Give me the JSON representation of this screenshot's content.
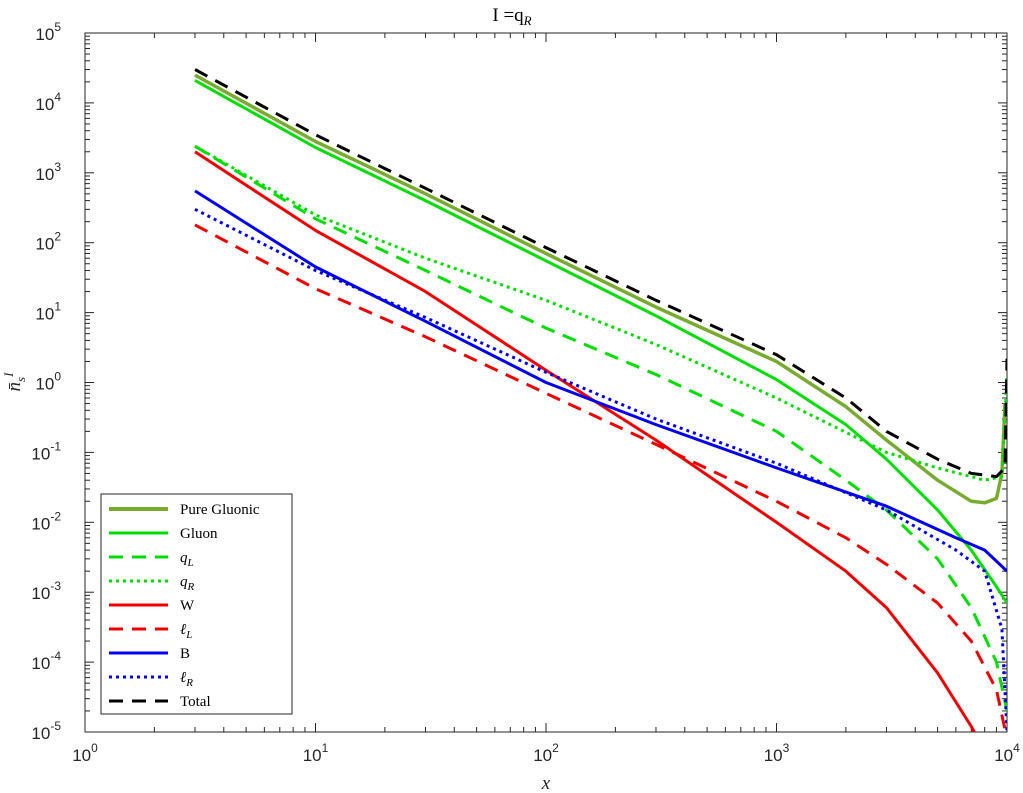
{
  "chart_data": {
    "type": "line",
    "title": "I =q",
    "title_sub": "R",
    "xlabel": "x",
    "ylabel": "n̄",
    "ylabel_sub": "s",
    "ylabel_sup": "I",
    "x_scale": "log",
    "y_scale": "log",
    "xlim": [
      1,
      10000
    ],
    "ylim": [
      1e-05,
      100000.0
    ],
    "x_ticks": [
      {
        "base": "10",
        "exp": "0"
      },
      {
        "base": "10",
        "exp": "1"
      },
      {
        "base": "10",
        "exp": "2"
      },
      {
        "base": "10",
        "exp": "3"
      },
      {
        "base": "10",
        "exp": "4"
      }
    ],
    "y_ticks": [
      {
        "base": "10",
        "exp": "-5"
      },
      {
        "base": "10",
        "exp": "-4"
      },
      {
        "base": "10",
        "exp": "-3"
      },
      {
        "base": "10",
        "exp": "-2"
      },
      {
        "base": "10",
        "exp": "-1"
      },
      {
        "base": "10",
        "exp": "0"
      },
      {
        "base": "10",
        "exp": "1"
      },
      {
        "base": "10",
        "exp": "2"
      },
      {
        "base": "10",
        "exp": "3"
      },
      {
        "base": "10",
        "exp": "4"
      },
      {
        "base": "10",
        "exp": "5"
      }
    ],
    "grid": false,
    "legend_position": "bottom-left",
    "series": [
      {
        "name": "Pure Gluonic",
        "color": "#77ac30",
        "dash": "solid",
        "points": [
          [
            3,
            25000
          ],
          [
            10,
            2800
          ],
          [
            30,
            500
          ],
          [
            100,
            70
          ],
          [
            300,
            12
          ],
          [
            1000,
            2
          ],
          [
            2000,
            0.45
          ],
          [
            3000,
            0.15
          ],
          [
            5000,
            0.04
          ],
          [
            7000,
            0.02
          ],
          [
            8000,
            0.019
          ],
          [
            9000,
            0.022
          ],
          [
            9500,
            0.05
          ],
          [
            9800,
            0.5
          ]
        ]
      },
      {
        "name": "Gluon",
        "color": "#00dd00",
        "dash": "solid",
        "points": [
          [
            3,
            21000
          ],
          [
            10,
            2300
          ],
          [
            30,
            400
          ],
          [
            100,
            55
          ],
          [
            300,
            9
          ],
          [
            1000,
            1.1
          ],
          [
            2000,
            0.25
          ],
          [
            3000,
            0.08
          ],
          [
            5000,
            0.015
          ],
          [
            7000,
            0.004
          ],
          [
            9000,
            0.0012
          ],
          [
            10000,
            0.0007
          ]
        ]
      },
      {
        "name": "q",
        "sub": "L",
        "color": "#00dd00",
        "dash": "dashed",
        "points": [
          [
            3,
            2400
          ],
          [
            10,
            220
          ],
          [
            30,
            40
          ],
          [
            100,
            6
          ],
          [
            300,
            1.3
          ],
          [
            1000,
            0.2
          ],
          [
            2000,
            0.04
          ],
          [
            3000,
            0.015
          ],
          [
            5000,
            0.003
          ],
          [
            7000,
            0.0006
          ],
          [
            9000,
            0.0001
          ],
          [
            10000,
            2e-05
          ]
        ]
      },
      {
        "name": "q",
        "sub": "R",
        "color": "#00dd00",
        "dash": "dotted",
        "points": [
          [
            3,
            2400
          ],
          [
            10,
            250
          ],
          [
            30,
            60
          ],
          [
            100,
            15
          ],
          [
            300,
            3.5
          ],
          [
            1000,
            0.6
          ],
          [
            3000,
            0.1
          ],
          [
            5000,
            0.06
          ],
          [
            8000,
            0.04
          ],
          [
            9500,
            0.045
          ],
          [
            10000,
            1.2
          ]
        ]
      },
      {
        "name": "W",
        "color": "#ee0000",
        "dash": "solid",
        "points": [
          [
            3,
            2000
          ],
          [
            10,
            150
          ],
          [
            30,
            20
          ],
          [
            100,
            1.5
          ],
          [
            300,
            0.15
          ],
          [
            1000,
            0.01
          ],
          [
            2000,
            0.002
          ],
          [
            3000,
            0.0006
          ],
          [
            5000,
            7e-05
          ],
          [
            7000,
            1.2e-05
          ],
          [
            7500,
            8e-06
          ]
        ]
      },
      {
        "name": "ℓ",
        "sub": "L",
        "color": "#ee0000",
        "dash": "dashed",
        "points": [
          [
            3,
            180
          ],
          [
            10,
            22
          ],
          [
            30,
            4.5
          ],
          [
            100,
            0.7
          ],
          [
            300,
            0.13
          ],
          [
            1000,
            0.02
          ],
          [
            2000,
            0.006
          ],
          [
            3000,
            0.0025
          ],
          [
            5000,
            0.0007
          ],
          [
            7000,
            0.0002
          ],
          [
            9000,
            4e-05
          ],
          [
            10000,
            8e-06
          ]
        ]
      },
      {
        "name": "B",
        "color": "#0000ee",
        "dash": "solid",
        "points": [
          [
            3,
            550
          ],
          [
            10,
            45
          ],
          [
            30,
            7.5
          ],
          [
            100,
            1
          ],
          [
            300,
            0.25
          ],
          [
            1000,
            0.06
          ],
          [
            3000,
            0.017
          ],
          [
            6000,
            0.006
          ],
          [
            8000,
            0.004
          ],
          [
            10000,
            0.002
          ]
        ]
      },
      {
        "name": "ℓ",
        "sub": "R",
        "color": "#0000ee",
        "dash": "dotted",
        "points": [
          [
            3,
            300
          ],
          [
            10,
            40
          ],
          [
            30,
            8.5
          ],
          [
            100,
            1.4
          ],
          [
            300,
            0.3
          ],
          [
            1000,
            0.07
          ],
          [
            3000,
            0.015
          ],
          [
            6000,
            0.004
          ],
          [
            8000,
            0.002
          ],
          [
            9500,
            0.0003
          ],
          [
            10000,
            1e-05
          ]
        ]
      },
      {
        "name": "Total",
        "color": "#000000",
        "dash": "dashed",
        "points": [
          [
            3,
            30000
          ],
          [
            10,
            3500
          ],
          [
            30,
            600
          ],
          [
            100,
            85
          ],
          [
            300,
            15
          ],
          [
            1000,
            2.5
          ],
          [
            2000,
            0.6
          ],
          [
            3000,
            0.2
          ],
          [
            5000,
            0.08
          ],
          [
            7000,
            0.05
          ],
          [
            9000,
            0.045
          ],
          [
            9800,
            0.06
          ],
          [
            10000,
            2.2
          ]
        ]
      }
    ]
  }
}
